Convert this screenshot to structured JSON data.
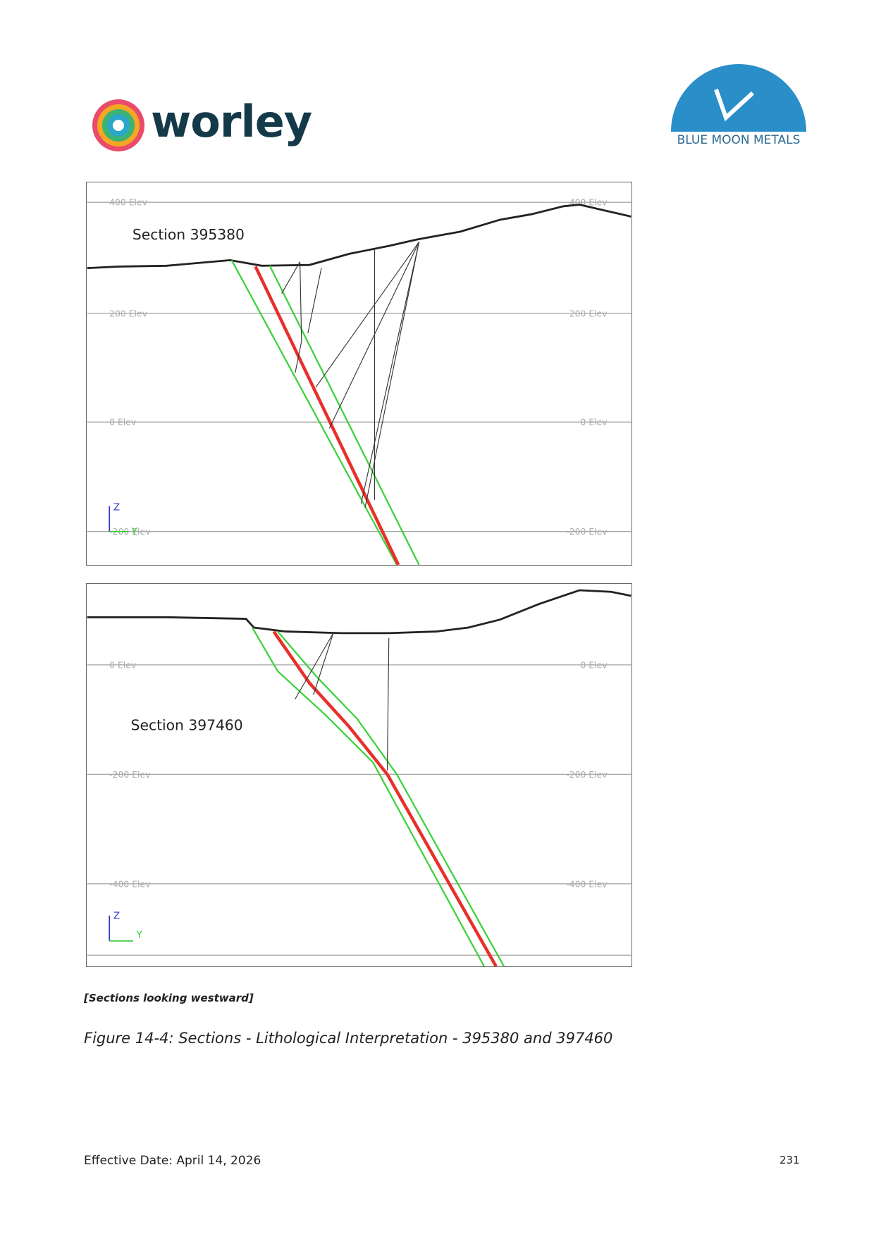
{
  "header": {
    "left_logo": "worley",
    "right_logo": "BLUE MOON METALS"
  },
  "figures": [
    {
      "label": "Section 395380",
      "elevations": [
        {
          "left": "400 Elev",
          "right": "400 Elev"
        },
        {
          "left": "200 Elev",
          "right": "200 Elev"
        },
        {
          "left": "0 Elev",
          "right": "0 Elev"
        },
        {
          "left": "-200 Elev",
          "right": "-200 Elev"
        }
      ],
      "axis_z": "Z",
      "axis_y": "Y"
    },
    {
      "label": "Section 397460",
      "elevations": [
        {
          "left": "0 Elev",
          "right": "0 Elev"
        },
        {
          "left": "-200 Elev",
          "right": "-200 Elev"
        },
        {
          "left": "-400 Elev",
          "right": "-400 Elev"
        }
      ],
      "axis_z": "Z",
      "axis_y": "Y"
    }
  ],
  "note": "[Sections looking westward]",
  "caption": "Figure 14-4: Sections - Lithological Interpretation - 395380 and 397460",
  "footer": {
    "date": "Effective Date: April 14, 2026",
    "page": "231"
  }
}
